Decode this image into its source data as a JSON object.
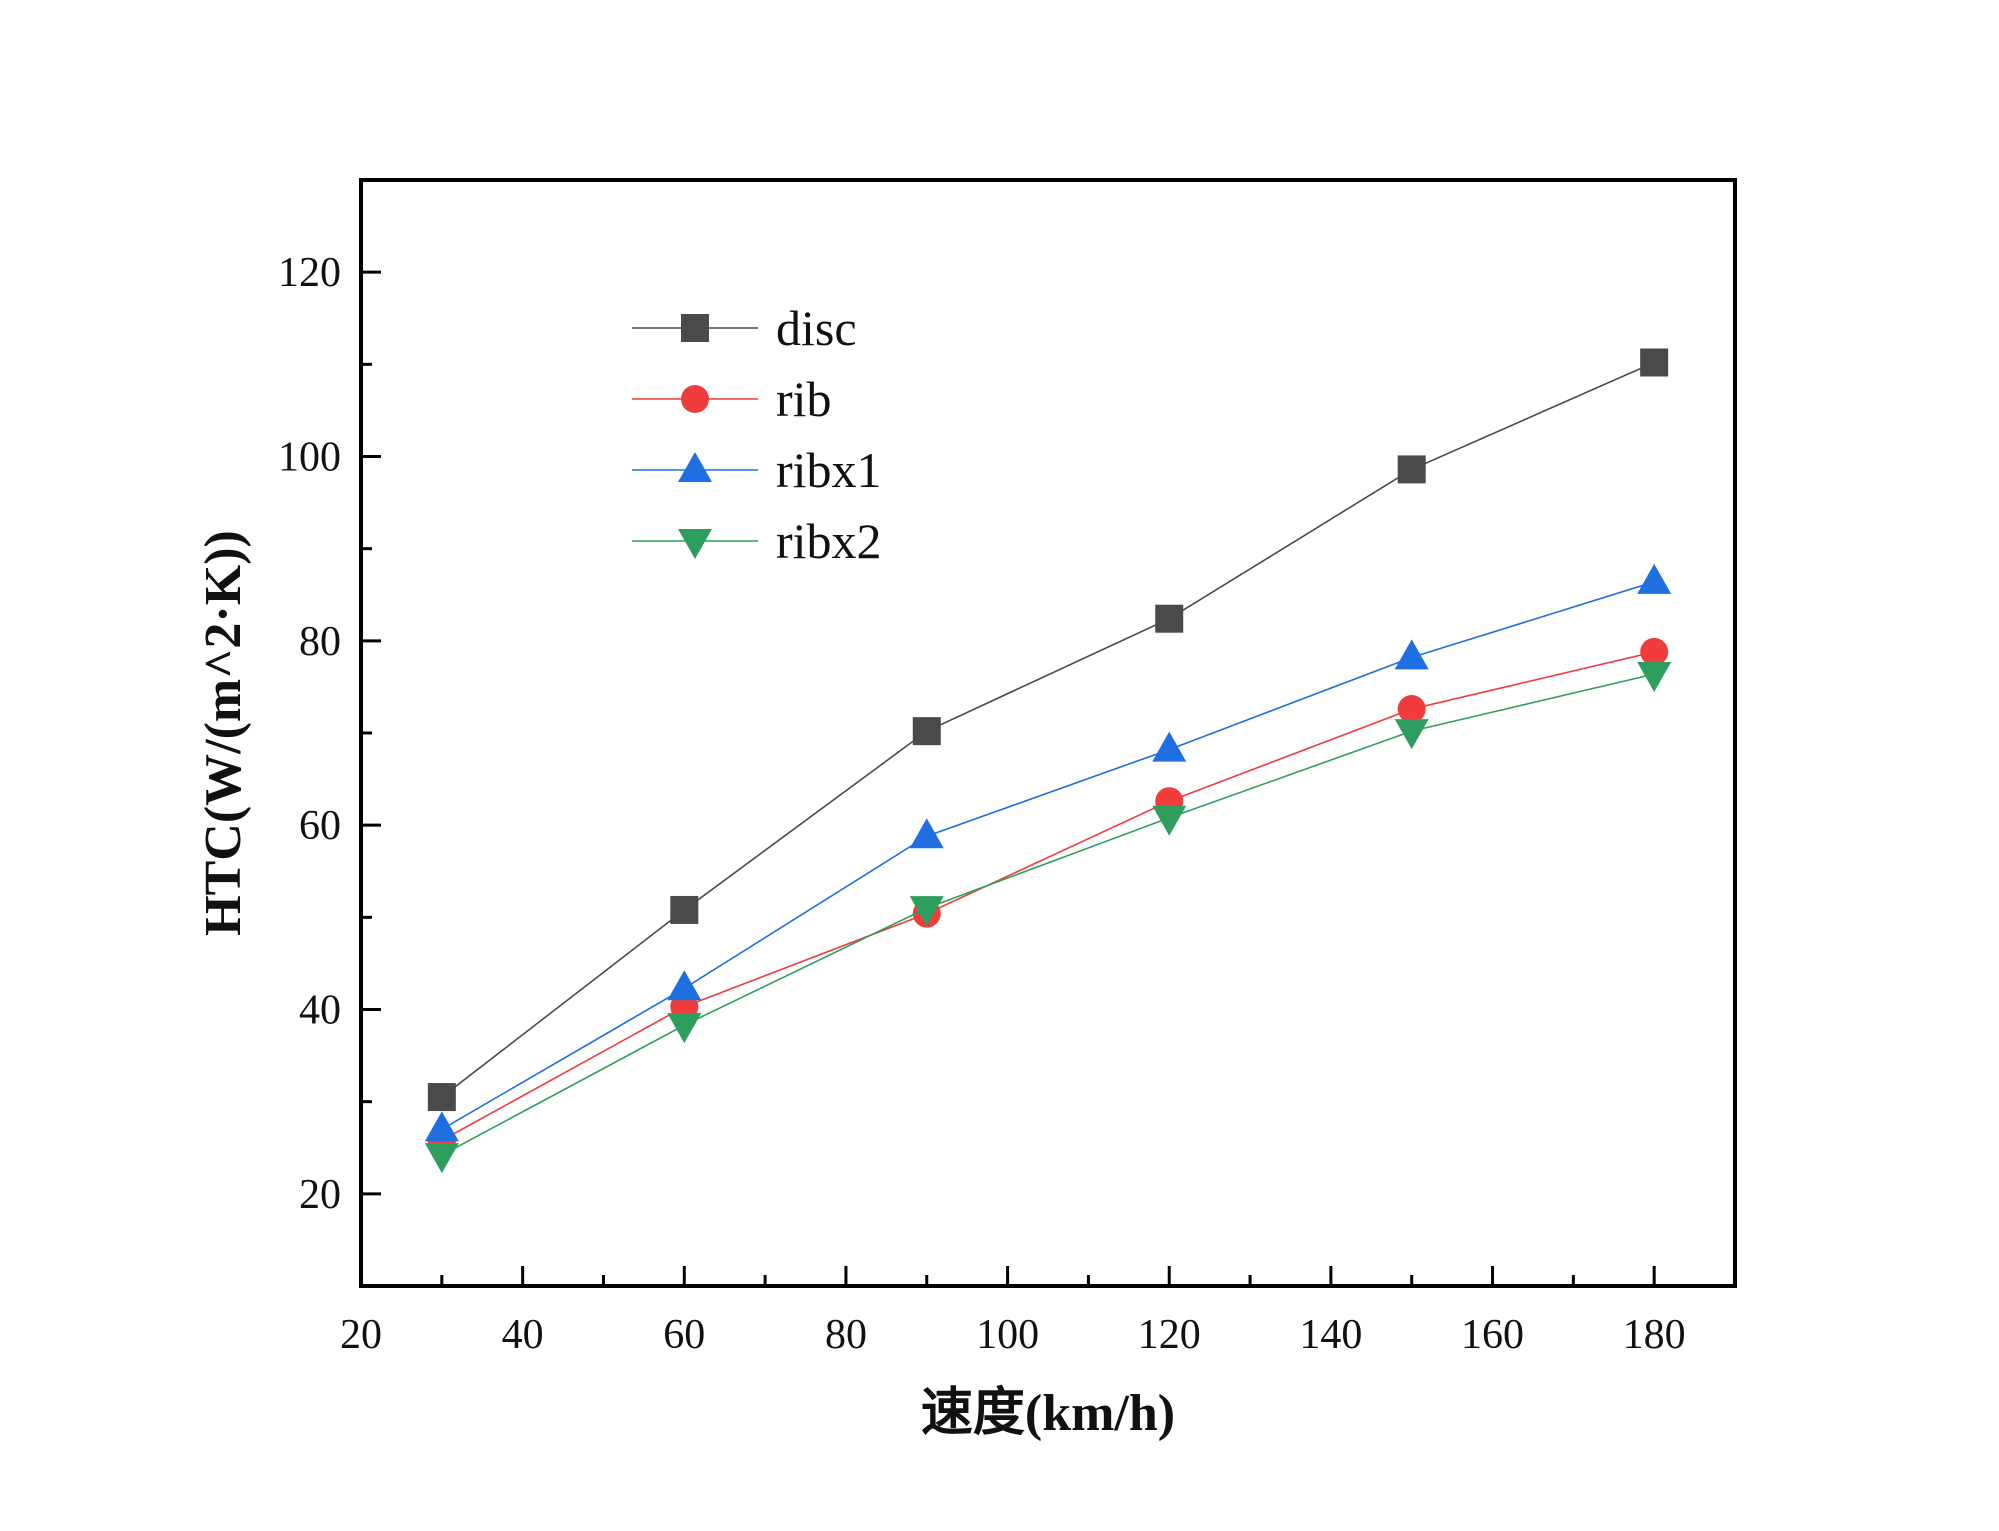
{
  "chart_data": {
    "type": "line",
    "title": "",
    "xlabel": "速度(km/h)",
    "ylabel": "HTC(W/(m^2·K))",
    "xlim": [
      20,
      190
    ],
    "ylim": [
      10,
      130
    ],
    "x_ticks": [
      20,
      40,
      60,
      80,
      100,
      120,
      140,
      160,
      180
    ],
    "x_tick_labels": [
      "20",
      "40",
      "60",
      "80",
      "100",
      "120",
      "140",
      "160",
      "180"
    ],
    "y_ticks": [
      20,
      40,
      60,
      80,
      100,
      120
    ],
    "y_tick_labels": [
      "20",
      "40",
      "60",
      "80",
      "100",
      "120"
    ],
    "x": [
      30,
      60,
      90,
      120,
      150,
      180
    ],
    "grid": false,
    "legend_position": "top-left",
    "series": [
      {
        "name": "disc",
        "color": "#4a4a4a",
        "marker": "square",
        "values": [
          30.5,
          50.8,
          70.2,
          82.4,
          98.6,
          110.2
        ]
      },
      {
        "name": "rib",
        "color": "#f03c3c",
        "marker": "circle",
        "values": [
          25.8,
          40.3,
          50.4,
          62.6,
          72.6,
          78.8
        ]
      },
      {
        "name": "ribx1",
        "color": "#1f6fe0",
        "marker": "triangle-up",
        "values": [
          27.0,
          42.3,
          58.8,
          68.2,
          78.2,
          86.4
        ]
      },
      {
        "name": "ribx2",
        "color": "#2e9e5e",
        "marker": "triangle-down",
        "values": [
          24.2,
          38.3,
          51.0,
          60.8,
          70.2,
          76.4
        ]
      }
    ]
  }
}
